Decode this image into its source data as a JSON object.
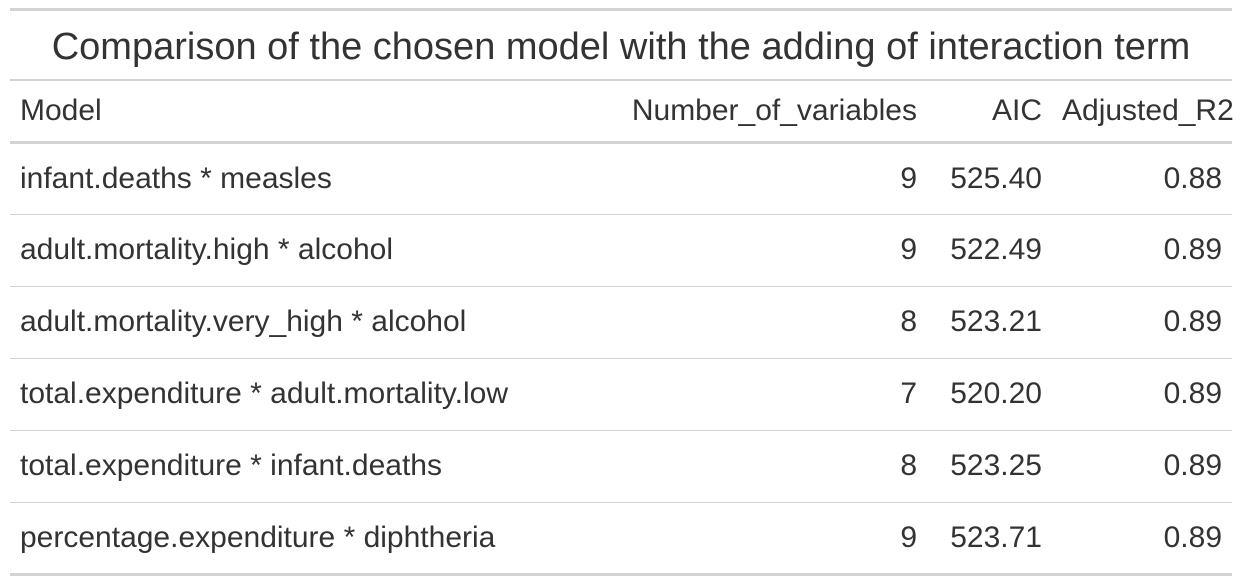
{
  "chart_data": {
    "type": "table",
    "title": "Comparison of the chosen model with the adding of interaction term",
    "columns": [
      "Model",
      "Number_of_variables",
      "AIC",
      "Adjusted_R2"
    ],
    "rows": [
      {
        "Model": "infant.deaths * measles",
        "Number_of_variables": "9",
        "AIC": "525.40",
        "Adjusted_R2": "0.88"
      },
      {
        "Model": "adult.mortality.high * alcohol",
        "Number_of_variables": "9",
        "AIC": "522.49",
        "Adjusted_R2": "0.89"
      },
      {
        "Model": "adult.mortality.very_high * alcohol",
        "Number_of_variables": "8",
        "AIC": "523.21",
        "Adjusted_R2": "0.89"
      },
      {
        "Model": "total.expenditure * adult.mortality.low",
        "Number_of_variables": "7",
        "AIC": "520.20",
        "Adjusted_R2": "0.89"
      },
      {
        "Model": "total.expenditure * infant.deaths",
        "Number_of_variables": "8",
        "AIC": "523.25",
        "Adjusted_R2": "0.89"
      },
      {
        "Model": "percentage.expenditure * diphtheria",
        "Number_of_variables": "9",
        "AIC": "523.71",
        "Adjusted_R2": "0.89"
      }
    ]
  }
}
